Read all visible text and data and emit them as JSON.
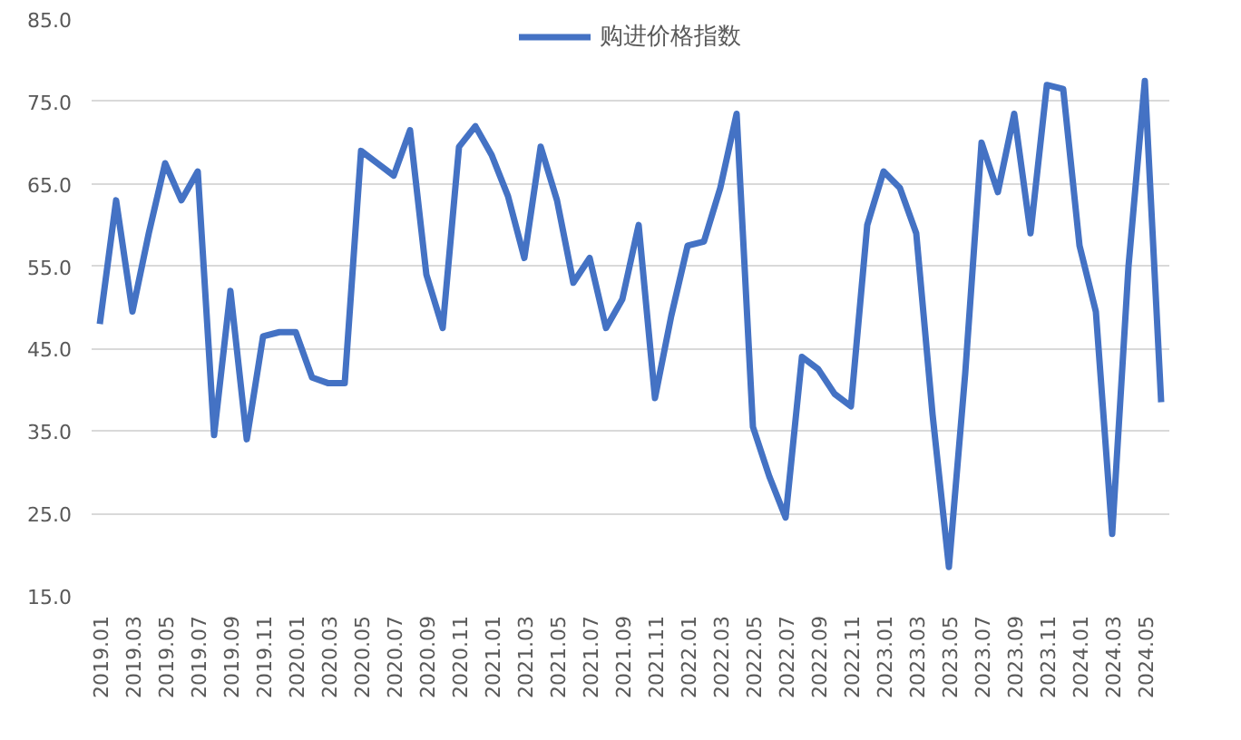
{
  "chart_data": {
    "type": "line",
    "categories": [
      "2019.01",
      null,
      "2019.03",
      null,
      "2019.05",
      null,
      "2019.07",
      null,
      "2019.09",
      null,
      "2019.11",
      null,
      "2020.01",
      null,
      "2020.03",
      null,
      "2020.05",
      null,
      "2020.07",
      null,
      "2020.09",
      null,
      "2020.11",
      null,
      "2021.01",
      null,
      "2021.03",
      null,
      "2021.05",
      null,
      "2021.07",
      null,
      "2021.09",
      null,
      "2021.11",
      null,
      "2022.01",
      null,
      "2022.03",
      null,
      "2022.05",
      null,
      "2022.07",
      null,
      "2022.09",
      null,
      "2022.11",
      null,
      "2023.01",
      null,
      "2023.03",
      null,
      "2023.05",
      null,
      "2023.07",
      null,
      "2023.09",
      null,
      "2023.11",
      null,
      "2024.01",
      null,
      "2024.03",
      null,
      "2024.05",
      null
    ],
    "series": [
      {
        "name": "购进价格指数",
        "color": "#4472c4",
        "values": [
          48,
          63,
          49.5,
          59,
          67.5,
          63,
          66.5,
          34.5,
          52,
          34,
          46.5,
          47,
          47,
          41.5,
          40.8,
          40.8,
          69,
          67.5,
          66,
          71.5,
          54,
          47.5,
          69.5,
          72,
          68.5,
          63.5,
          56,
          69.5,
          63,
          53,
          56,
          47.5,
          51,
          60,
          39,
          49,
          57.5,
          58,
          64.5,
          73.5,
          35.5,
          29.5,
          24.5,
          44,
          42.5,
          39.5,
          38,
          60,
          66.5,
          64.5,
          59,
          37,
          18.5,
          42,
          70,
          64,
          73.5,
          59,
          77,
          76.5,
          57.5,
          49.5,
          22.5,
          55,
          77.5,
          38.5
        ]
      }
    ],
    "ylim": [
      15,
      85
    ],
    "yticks": [
      {
        "value": 15,
        "label": "15.0"
      },
      {
        "value": 25,
        "label": "25.0"
      },
      {
        "value": 35,
        "label": "35.0"
      },
      {
        "value": 45,
        "label": "45.0"
      },
      {
        "value": 55,
        "label": "55.0"
      },
      {
        "value": 65,
        "label": "65.0"
      },
      {
        "value": 75,
        "label": "75.0"
      },
      {
        "value": 85,
        "label": "85.0"
      }
    ],
    "grid": "y",
    "legend": "top",
    "line_style": "solid"
  }
}
